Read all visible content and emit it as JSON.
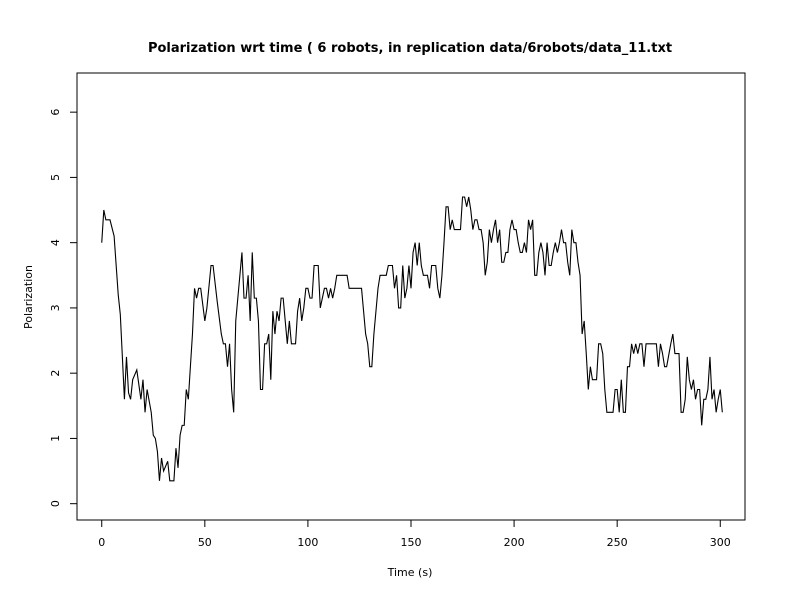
{
  "chart_data": {
    "type": "line",
    "title": "Polarization wrt time ( 6 robots, in replication  data/6robots/data_11.txt",
    "x_label": "Time (s)",
    "y_label": "Polarization",
    "xlim": [
      -12,
      312
    ],
    "ylim": [
      -0.25,
      6.6
    ],
    "xticks": [
      0,
      50,
      100,
      150,
      200,
      250,
      300
    ],
    "yticks": [
      0,
      1,
      2,
      3,
      4,
      5,
      6
    ],
    "color": "#000000",
    "x": [
      0,
      1,
      2,
      4,
      6,
      8,
      9,
      11,
      12,
      13,
      14,
      15,
      17,
      19,
      20,
      21,
      22,
      24,
      25,
      26,
      27,
      28,
      29,
      30,
      32,
      33,
      35,
      36,
      37,
      38,
      39,
      40,
      41,
      42,
      44,
      45,
      46,
      47,
      48,
      50,
      51,
      53,
      54,
      56,
      58,
      59,
      60,
      61,
      62,
      63,
      64,
      65,
      67,
      68,
      69,
      70,
      71,
      72,
      73,
      74,
      75,
      76,
      77,
      78,
      79,
      80,
      81,
      82,
      83,
      84,
      85,
      86,
      87,
      88,
      89,
      90,
      91,
      92,
      94,
      95,
      96,
      97,
      98,
      99,
      100,
      101,
      102,
      103,
      105,
      106,
      107,
      108,
      109,
      110,
      111,
      112,
      113,
      114,
      119,
      120,
      126,
      127,
      128,
      129,
      130,
      131,
      132,
      134,
      135,
      138,
      139,
      141,
      142,
      143,
      144,
      145,
      146,
      147,
      148,
      149,
      150,
      151,
      152,
      153,
      154,
      155,
      156,
      158,
      159,
      160,
      162,
      163,
      164,
      165,
      166,
      167,
      168,
      169,
      170,
      171,
      174,
      175,
      176,
      177,
      178,
      179,
      180,
      181,
      182,
      183,
      184,
      185,
      186,
      187,
      188,
      189,
      190,
      191,
      192,
      193,
      194,
      195,
      196,
      197,
      198,
      199,
      200,
      201,
      202,
      203,
      204,
      205,
      206,
      207,
      208,
      209,
      210,
      211,
      212,
      213,
      214,
      215,
      216,
      217,
      218,
      219,
      220,
      221,
      222,
      223,
      224,
      225,
      226,
      227,
      228,
      229,
      230,
      231,
      232,
      233,
      234,
      235,
      236,
      237,
      238,
      240,
      241,
      242,
      243,
      244,
      245,
      248,
      249,
      250,
      251,
      252,
      253,
      254,
      255,
      256,
      257,
      258,
      259,
      260,
      261,
      262,
      263,
      264,
      269,
      270,
      271,
      272,
      273,
      274,
      276,
      277,
      278,
      280,
      281,
      282,
      283,
      284,
      285,
      286,
      287,
      288,
      289,
      290,
      291,
      292,
      293,
      294,
      295,
      296,
      297,
      298,
      299,
      300,
      301
    ],
    "values": [
      4.0,
      4.5,
      4.35,
      4.35,
      4.1,
      3.2,
      2.9,
      1.6,
      2.25,
      1.7,
      1.6,
      1.9,
      2.05,
      1.6,
      1.9,
      1.4,
      1.75,
      1.4,
      1.05,
      1.0,
      0.8,
      0.35,
      0.7,
      0.5,
      0.65,
      0.35,
      0.35,
      0.85,
      0.55,
      1.05,
      1.2,
      1.2,
      1.75,
      1.6,
      2.6,
      3.3,
      3.15,
      3.3,
      3.3,
      2.8,
      3.0,
      3.65,
      3.65,
      3.1,
      2.6,
      2.45,
      2.45,
      2.1,
      2.45,
      1.75,
      1.4,
      2.8,
      3.5,
      3.85,
      3.15,
      3.15,
      3.5,
      2.8,
      3.85,
      3.15,
      3.15,
      2.8,
      1.75,
      1.75,
      2.45,
      2.45,
      2.6,
      1.9,
      2.95,
      2.6,
      2.95,
      2.8,
      3.15,
      3.15,
      2.8,
      2.45,
      2.8,
      2.45,
      2.45,
      2.95,
      3.15,
      2.8,
      3.0,
      3.3,
      3.3,
      3.15,
      3.15,
      3.65,
      3.65,
      3.0,
      3.15,
      3.3,
      3.3,
      3.15,
      3.3,
      3.15,
      3.3,
      3.5,
      3.5,
      3.3,
      3.3,
      2.95,
      2.6,
      2.45,
      2.1,
      2.1,
      2.6,
      3.3,
      3.5,
      3.5,
      3.65,
      3.65,
      3.3,
      3.5,
      3.0,
      3.0,
      3.65,
      3.15,
      3.3,
      3.65,
      3.3,
      3.85,
      4.0,
      3.65,
      4.0,
      3.65,
      3.5,
      3.5,
      3.3,
      3.65,
      3.65,
      3.3,
      3.15,
      3.5,
      4.0,
      4.55,
      4.55,
      4.2,
      4.35,
      4.2,
      4.2,
      4.7,
      4.7,
      4.55,
      4.7,
      4.5,
      4.2,
      4.35,
      4.35,
      4.2,
      4.2,
      4.0,
      3.5,
      3.7,
      4.2,
      4.0,
      4.2,
      4.35,
      4.0,
      4.2,
      3.7,
      3.7,
      3.85,
      3.85,
      4.2,
      4.35,
      4.2,
      4.2,
      4.0,
      3.85,
      3.85,
      4.0,
      3.85,
      4.35,
      4.2,
      4.35,
      3.5,
      3.5,
      3.85,
      4.0,
      3.85,
      3.5,
      4.0,
      3.65,
      3.65,
      3.85,
      4.0,
      3.85,
      4.0,
      4.2,
      4.0,
      4.0,
      3.7,
      3.5,
      4.2,
      4.0,
      4.0,
      3.7,
      3.5,
      2.6,
      2.8,
      2.3,
      1.75,
      2.1,
      1.9,
      1.9,
      2.45,
      2.45,
      2.3,
      1.75,
      1.4,
      1.4,
      1.75,
      1.75,
      1.4,
      1.9,
      1.4,
      1.4,
      2.1,
      2.1,
      2.45,
      2.3,
      2.45,
      2.3,
      2.45,
      2.45,
      2.1,
      2.45,
      2.45,
      2.1,
      2.45,
      2.3,
      2.1,
      2.1,
      2.45,
      2.6,
      2.3,
      2.3,
      1.4,
      1.4,
      1.6,
      2.25,
      1.9,
      1.75,
      1.9,
      1.6,
      1.75,
      1.75,
      1.2,
      1.6,
      1.6,
      1.75,
      2.25,
      1.6,
      1.75,
      1.4,
      1.6,
      1.75,
      1.4
    ]
  }
}
